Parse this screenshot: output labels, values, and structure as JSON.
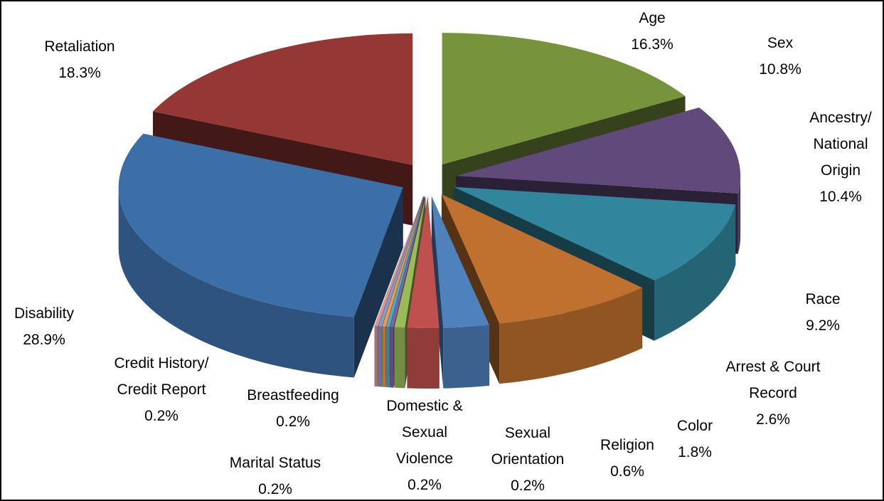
{
  "chart_data": {
    "type": "pie",
    "three_d": true,
    "exploded": true,
    "categories": [
      "Age",
      "Sex",
      "Ancestry/ National Origin",
      "Race",
      "Arrest & Court Record",
      "Color",
      "Religion",
      "Sexual Orientation",
      "Domestic & Sexual Violence",
      "Marital Status",
      "Breastfeeding",
      "Credit History/ Credit Report",
      "Disability",
      "Retaliation"
    ],
    "values": [
      16.3,
      10.8,
      10.4,
      9.2,
      2.6,
      1.8,
      0.6,
      0.2,
      0.2,
      0.2,
      0.2,
      0.2,
      28.9,
      18.3
    ],
    "value_labels": [
      "16.3%",
      "10.8%",
      "10.4%",
      "9.2%",
      "2.6%",
      "1.8%",
      "0.6%",
      "0.2%",
      "0.2%",
      "0.2%",
      "0.2%",
      "0.2%",
      "28.9%",
      "18.3%"
    ],
    "colors": [
      "#77933c",
      "#604a7b",
      "#31859c",
      "#c0712f",
      "#4f81bd",
      "#c0504d",
      "#9bbb59",
      "#8064a2",
      "#4bacc6",
      "#f79646",
      "#7f9fcf",
      "#d99694",
      "#3c6ea8",
      "#953735"
    ]
  }
}
